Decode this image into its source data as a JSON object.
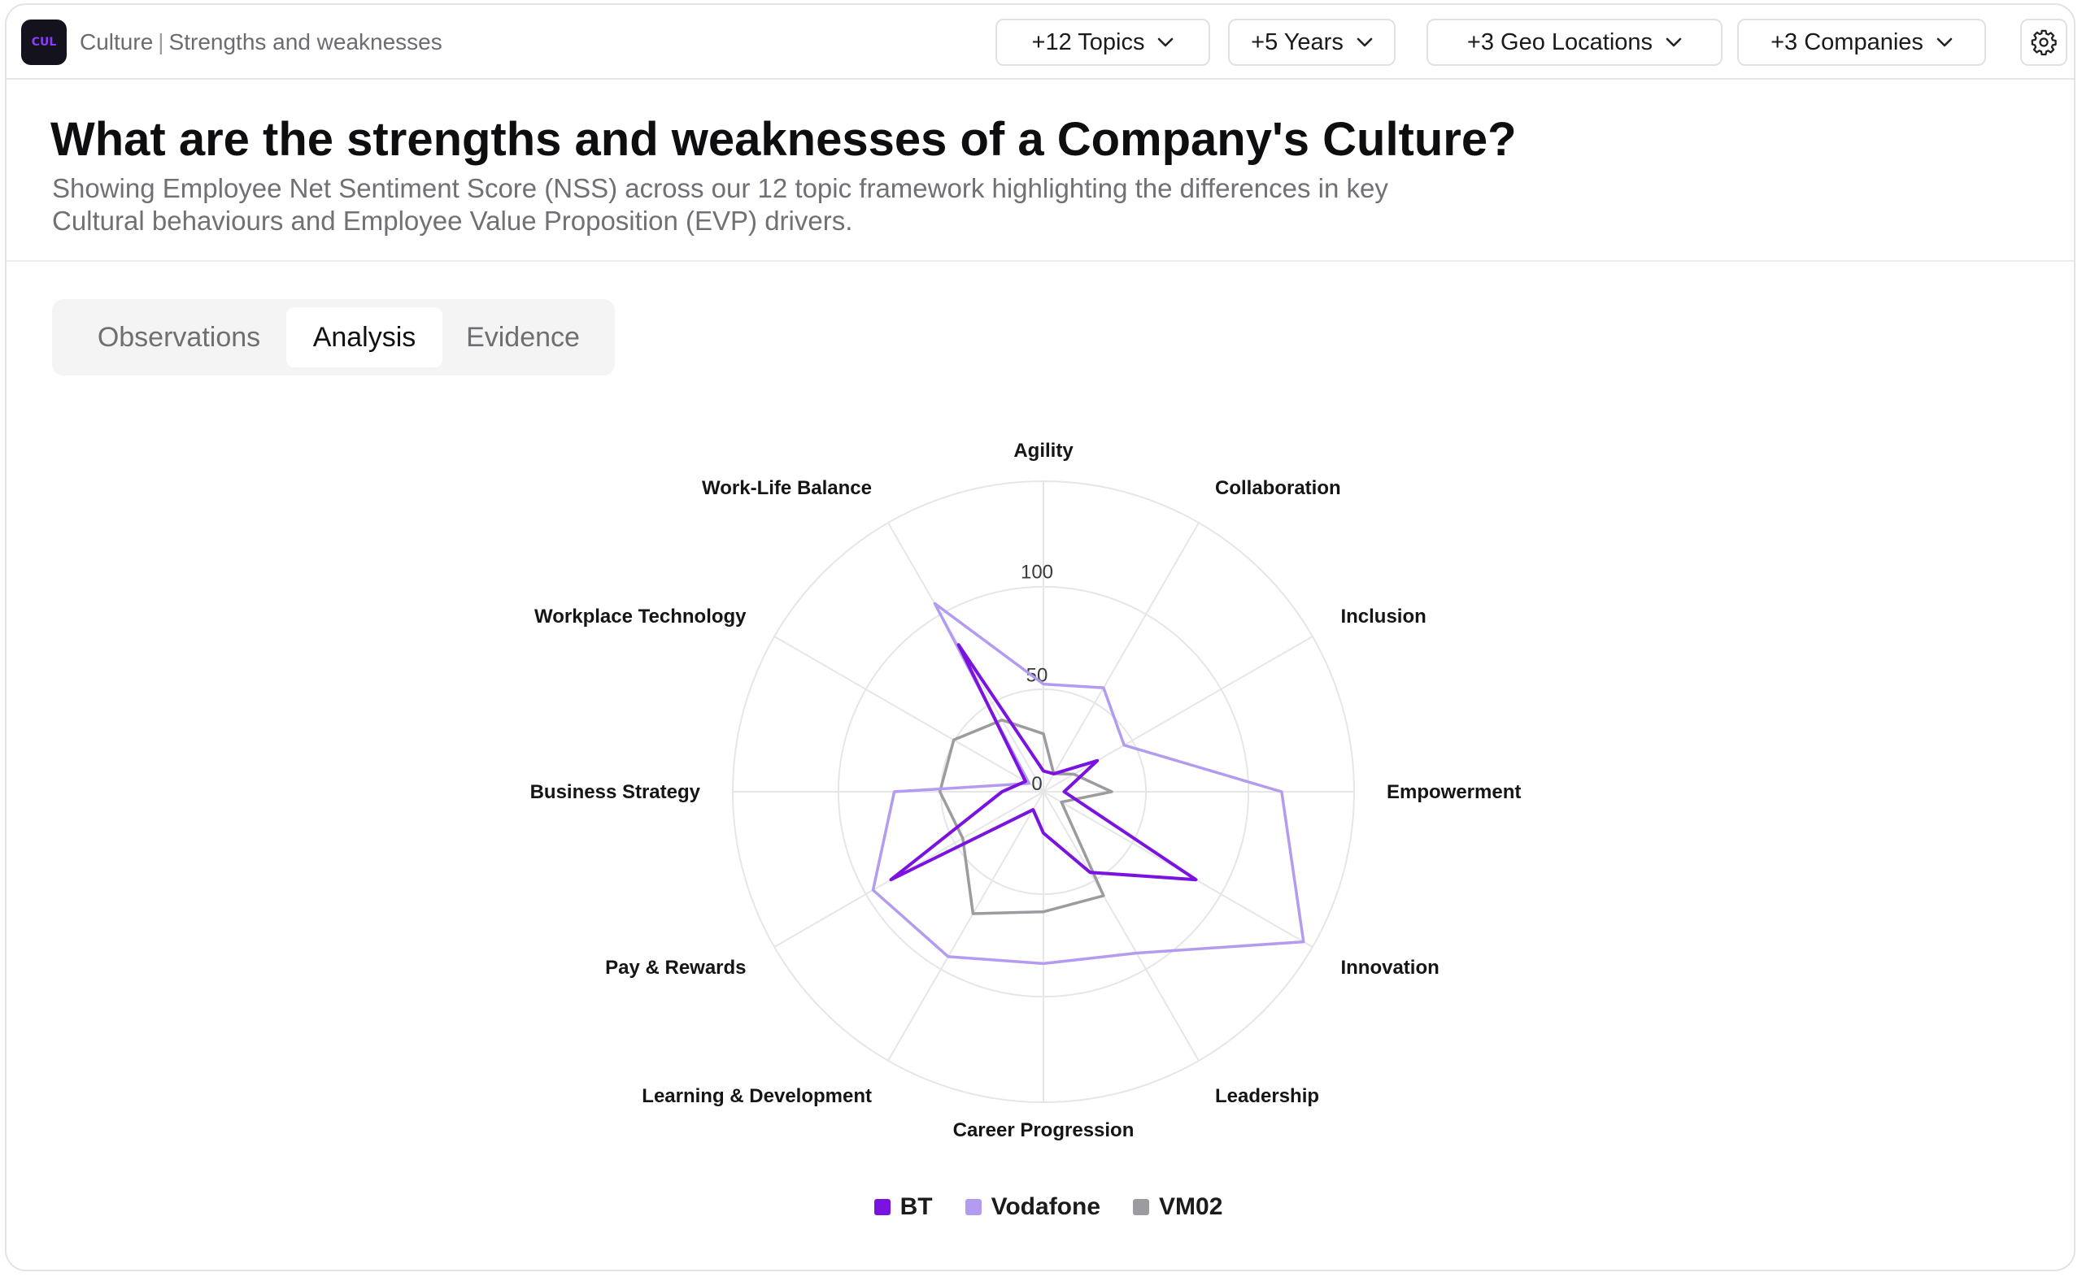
{
  "app": {
    "logo_text": "CUL",
    "section": "Culture",
    "page": "Strengths and weaknesses"
  },
  "filters": [
    {
      "label": "+12 Topics"
    },
    {
      "label": "+5 Years"
    },
    {
      "label": "+3 Geo Locations"
    },
    {
      "label": "+3 Companies"
    }
  ],
  "header": {
    "title": "What are the strengths and weaknesses of a Company's Culture?",
    "subtitle": "Showing Employee Net Sentiment Score (NSS) across our 12 topic framework highlighting the differences in key Cultural behaviours and Employee Value Proposition (EVP) drivers."
  },
  "tabs": [
    {
      "label": "Observations",
      "active": false
    },
    {
      "label": "Analysis",
      "active": true
    },
    {
      "label": "Evidence",
      "active": false
    }
  ],
  "icons": {
    "settings": "gear-icon",
    "dropdown": "chevron-down-icon"
  },
  "colors": {
    "bt": "#7a12e0",
    "vodafone": "#b39cf0",
    "vm02": "#9c9ca0",
    "grid": "#e6e6e8"
  },
  "chart_data": {
    "type": "radar",
    "categories": [
      "Agility",
      "Collaboration",
      "Inclusion",
      "Empowerment",
      "Innovation",
      "Leadership",
      "Career Progression",
      "Learning & Development",
      "Pay & Rewards",
      "Business Strategy",
      "Workplace Technology",
      "Work-Life Balance"
    ],
    "radial_ticks": [
      0,
      50,
      100
    ],
    "rmax": 150,
    "grid": true,
    "legend_position": "bottom",
    "series": [
      {
        "name": "BT",
        "color_key": "bt",
        "values": [
          10,
          10,
          30,
          10,
          85,
          45,
          20,
          10,
          85,
          20,
          10,
          82
        ]
      },
      {
        "name": "Vodafone",
        "color_key": "vodafone",
        "values": [
          52,
          58,
          45,
          115,
          145,
          90,
          83,
          92,
          95,
          72,
          8,
          105
        ]
      },
      {
        "name": "VM02",
        "color_key": "vm02",
        "values": [
          28,
          10,
          17,
          33,
          10,
          58,
          58,
          68,
          45,
          50,
          50,
          40
        ]
      }
    ]
  }
}
